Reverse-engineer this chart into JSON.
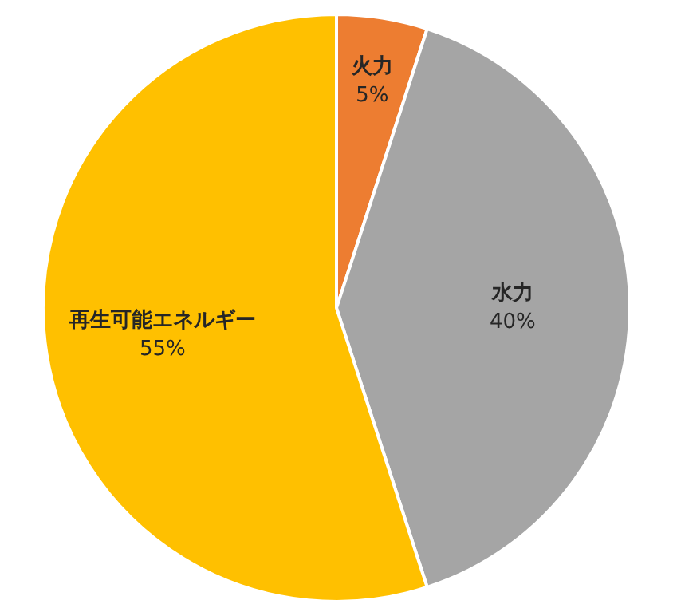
{
  "chart_data": {
    "type": "pie",
    "categories": [
      "火力",
      "水力",
      "再生可能エネルギー"
    ],
    "values": [
      5,
      40,
      55
    ],
    "colors": [
      "#ed7d31",
      "#a5a5a5",
      "#ffc000"
    ],
    "value_labels": [
      "5%",
      "40%",
      "55%"
    ]
  }
}
